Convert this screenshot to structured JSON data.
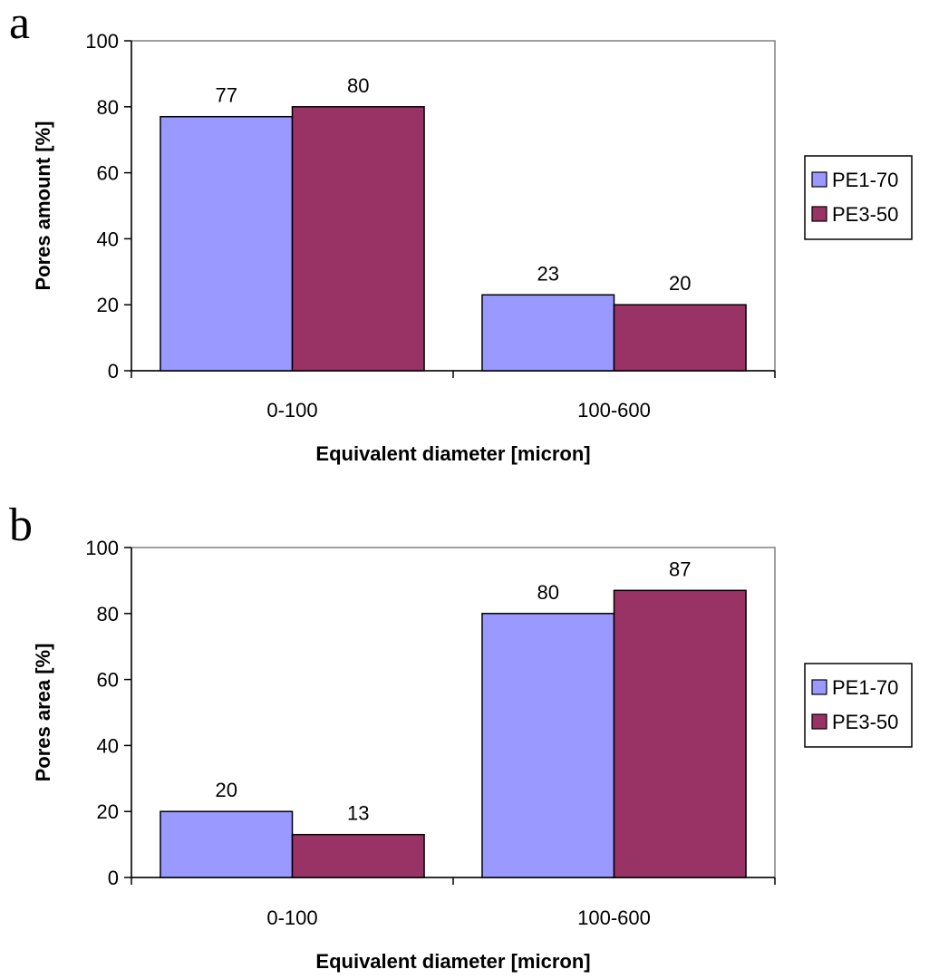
{
  "chart_data": [
    {
      "type": "bar",
      "panel_label": "a",
      "categories": [
        "0-100",
        "100-600"
      ],
      "series": [
        {
          "name": "PE1-70",
          "values": [
            77,
            23
          ],
          "color": "#9999ff"
        },
        {
          "name": "PE3-50",
          "values": [
            80,
            20
          ],
          "color": "#993366"
        }
      ],
      "data_labels": true,
      "xlabel": "Equivalent diameter [micron]",
      "ylabel": "Pores amount [%]",
      "ylim": [
        0,
        100
      ],
      "yticks": [
        0,
        20,
        40,
        60,
        80,
        100
      ],
      "grid": false,
      "legend": "right"
    },
    {
      "type": "bar",
      "panel_label": "b",
      "categories": [
        "0-100",
        "100-600"
      ],
      "series": [
        {
          "name": "PE1-70",
          "values": [
            20,
            80
          ],
          "color": "#9999ff"
        },
        {
          "name": "PE3-50",
          "values": [
            13,
            87
          ],
          "color": "#993366"
        }
      ],
      "data_labels": true,
      "xlabel": "Equivalent diameter [micron]",
      "ylabel": "Pores area [%]",
      "ylim": [
        0,
        100
      ],
      "yticks": [
        0,
        20,
        40,
        60,
        80,
        100
      ],
      "grid": false,
      "legend": "right"
    }
  ]
}
